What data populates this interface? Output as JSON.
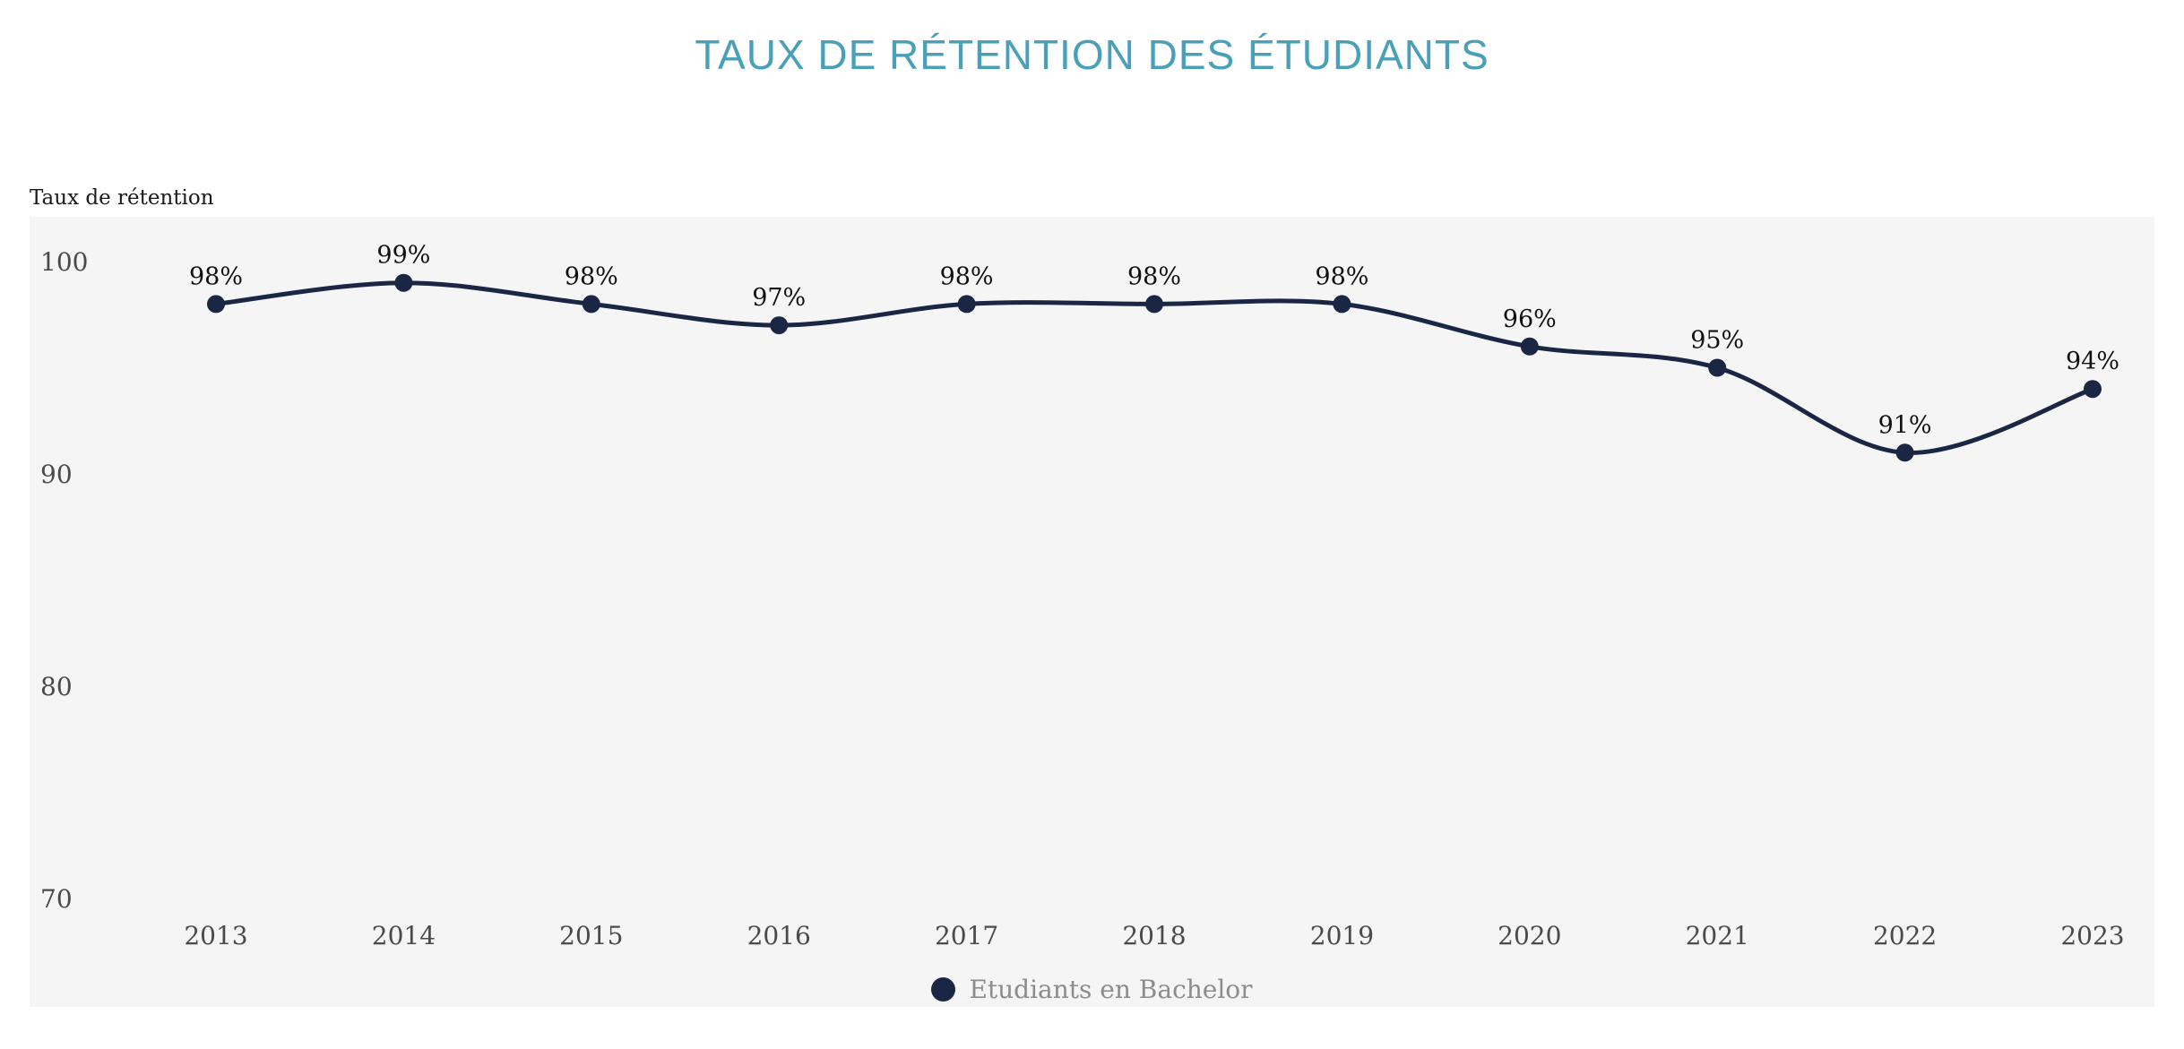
{
  "page": {
    "title": "TAUX DE RÉTENTION DES ÉTUDIANTS"
  },
  "chart_data": {
    "type": "line",
    "title": "TAUX DE RÉTENTION DES ÉTUDIANTS",
    "ylabel": "Taux de rétention",
    "xlabel": "",
    "categories": [
      "2013",
      "2014",
      "2015",
      "2016",
      "2017",
      "2018",
      "2019",
      "2020",
      "2021",
      "2022",
      "2023"
    ],
    "series": [
      {
        "name": "Etudiants en Bachelor",
        "values": [
          98,
          99,
          98,
          97,
          98,
          98,
          98,
          96,
          95,
          91,
          94
        ],
        "value_labels": [
          "98%",
          "99%",
          "98%",
          "97%",
          "98%",
          "98%",
          "98%",
          "96%",
          "95%",
          "91%",
          "94%"
        ]
      }
    ],
    "yticks": [
      100,
      90,
      80,
      70
    ],
    "ylim": [
      70,
      100
    ],
    "grid": false,
    "legend_position": "bottom",
    "colors": {
      "title": "#4AA0B8",
      "line": "#1A2744",
      "point": "#1A2744",
      "value_label": "#111111",
      "tick_label": "#4A4A4A",
      "x_label": "#4A4A4A",
      "legend_text": "#8C8C8C",
      "plot_background": "#F5F5F5",
      "page_background": "#FFFFFF"
    }
  },
  "legend": {
    "label": "Etudiants en Bachelor"
  }
}
